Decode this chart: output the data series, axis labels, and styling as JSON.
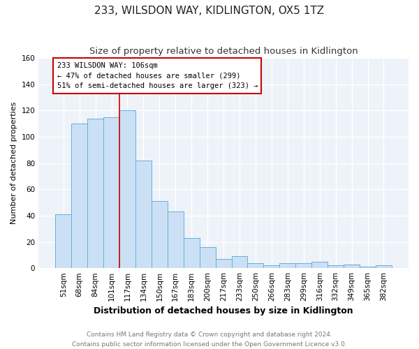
{
  "title": "233, WILSDON WAY, KIDLINGTON, OX5 1TZ",
  "subtitle": "Size of property relative to detached houses in Kidlington",
  "xlabel": "Distribution of detached houses by size in Kidlington",
  "ylabel": "Number of detached properties",
  "categories": [
    "51sqm",
    "68sqm",
    "84sqm",
    "101sqm",
    "117sqm",
    "134sqm",
    "150sqm",
    "167sqm",
    "183sqm",
    "200sqm",
    "217sqm",
    "233sqm",
    "250sqm",
    "266sqm",
    "283sqm",
    "299sqm",
    "316sqm",
    "332sqm",
    "349sqm",
    "365sqm",
    "382sqm"
  ],
  "values": [
    41,
    110,
    114,
    115,
    120,
    82,
    51,
    43,
    23,
    16,
    7,
    9,
    4,
    2,
    4,
    4,
    5,
    2,
    3,
    1,
    2
  ],
  "bar_color": "#cce0f5",
  "bar_edge_color": "#6aaed6",
  "vline_x": 3.5,
  "annotation_line1": "233 WILSDON WAY: 106sqm",
  "annotation_line2": "← 47% of detached houses are smaller (299)",
  "annotation_line3": "51% of semi-detached houses are larger (323) →",
  "annotation_box_color": "#ffffff",
  "annotation_box_edge_color": "#cc0000",
  "vline_color": "#cc0000",
  "ylim": [
    0,
    160
  ],
  "yticks": [
    0,
    20,
    40,
    60,
    80,
    100,
    120,
    140,
    160
  ],
  "footer_line1": "Contains HM Land Registry data © Crown copyright and database right 2024.",
  "footer_line2": "Contains public sector information licensed under the Open Government Licence v3.0.",
  "bg_color": "#eef2f9",
  "grid_color": "#ffffff",
  "title_fontsize": 11,
  "subtitle_fontsize": 9.5,
  "xlabel_fontsize": 9,
  "ylabel_fontsize": 8,
  "tick_fontsize": 7.5,
  "footer_fontsize": 6.5,
  "annotation_fontsize": 7.5
}
